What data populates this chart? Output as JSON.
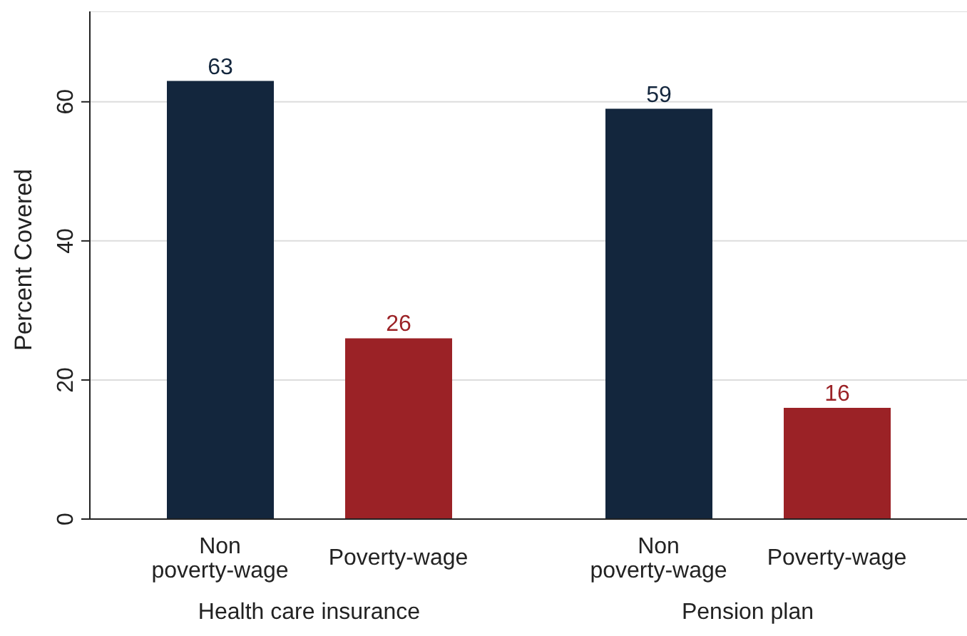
{
  "chart_data": {
    "type": "bar",
    "ylabel": "Percent Covered",
    "categories": [
      "Health care insurance",
      "Pension plan"
    ],
    "series": [
      {
        "name": "Non poverty-wage",
        "color": "#13263d",
        "values": [
          63,
          59
        ]
      },
      {
        "name": "Poverty-wage",
        "color": "#9b2226",
        "values": [
          26,
          16
        ]
      }
    ],
    "ylim": [
      0,
      73
    ],
    "yticks": [
      0,
      20,
      40,
      60
    ],
    "grid": "y",
    "data_labels": true
  }
}
